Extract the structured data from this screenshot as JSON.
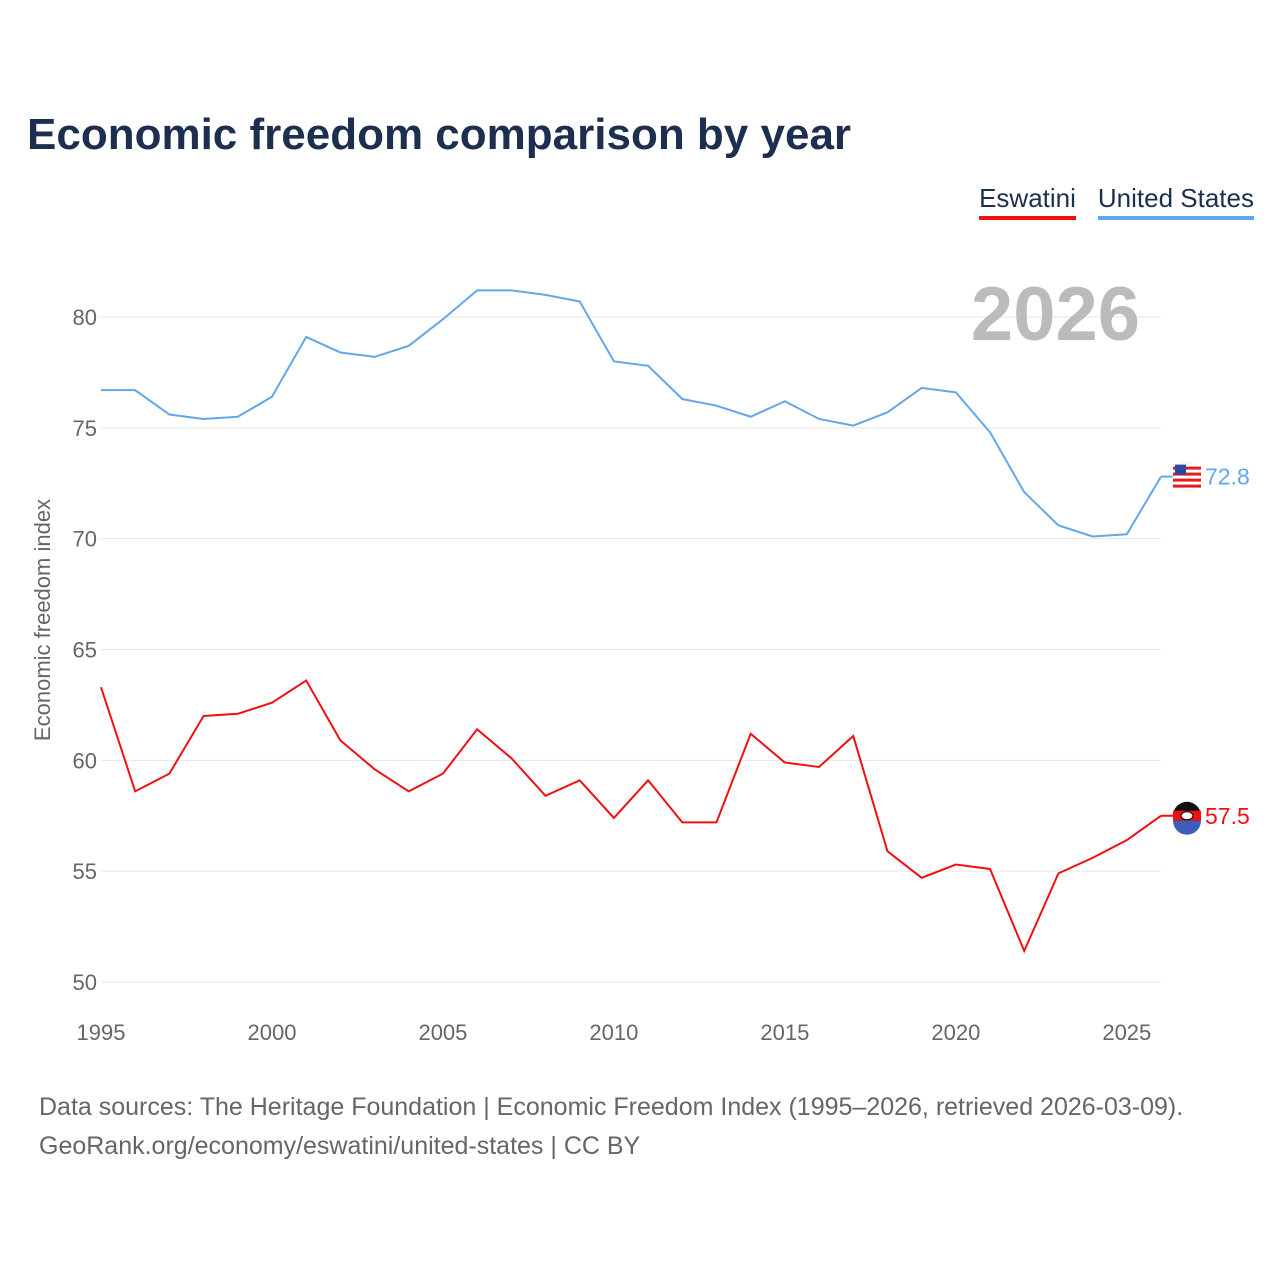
{
  "chart_data": {
    "type": "line",
    "title": "Economic freedom comparison by year",
    "ylabel": "Economic freedom index",
    "xlabel": "",
    "year_watermark": "2026",
    "xlim": [
      1995,
      2026
    ],
    "ylim": [
      50,
      83
    ],
    "yticks": [
      50,
      55,
      60,
      65,
      70,
      75,
      80
    ],
    "xticks": [
      1995,
      2000,
      2005,
      2010,
      2015,
      2020,
      2025
    ],
    "grid": true,
    "legend_position": "top-right",
    "x": [
      1995,
      1996,
      1997,
      1998,
      1999,
      2000,
      2001,
      2002,
      2003,
      2004,
      2005,
      2006,
      2007,
      2008,
      2009,
      2010,
      2011,
      2012,
      2013,
      2014,
      2015,
      2016,
      2017,
      2018,
      2019,
      2020,
      2021,
      2022,
      2023,
      2024,
      2025,
      2026
    ],
    "series": [
      {
        "name": "Eswatini",
        "color": "#ee1111",
        "end_label": "57.5",
        "values": [
          63.3,
          58.6,
          59.4,
          62.0,
          62.1,
          62.6,
          63.6,
          60.9,
          59.6,
          58.6,
          59.4,
          61.4,
          60.1,
          58.4,
          59.1,
          57.4,
          59.1,
          57.2,
          57.2,
          61.2,
          59.9,
          59.7,
          61.1,
          55.9,
          54.7,
          55.3,
          55.1,
          51.4,
          54.9,
          55.6,
          56.4,
          57.5
        ]
      },
      {
        "name": "United States",
        "color": "#63a7e8",
        "end_label": "72.8",
        "values": [
          76.7,
          76.7,
          75.6,
          75.4,
          75.5,
          76.4,
          79.1,
          78.4,
          78.2,
          78.7,
          79.9,
          81.2,
          81.2,
          81.0,
          80.7,
          78.0,
          77.8,
          76.3,
          76.0,
          75.5,
          76.2,
          75.4,
          75.1,
          75.7,
          76.8,
          76.6,
          74.8,
          72.1,
          70.6,
          70.1,
          70.2,
          72.8
        ]
      }
    ]
  },
  "footer": {
    "line1": "Data sources: The Heritage Foundation | Economic Freedom Index (1995–2026, retrieved 2026-03-09).",
    "line2": "GeoRank.org/economy/eswatini/united-states | CC BY"
  }
}
